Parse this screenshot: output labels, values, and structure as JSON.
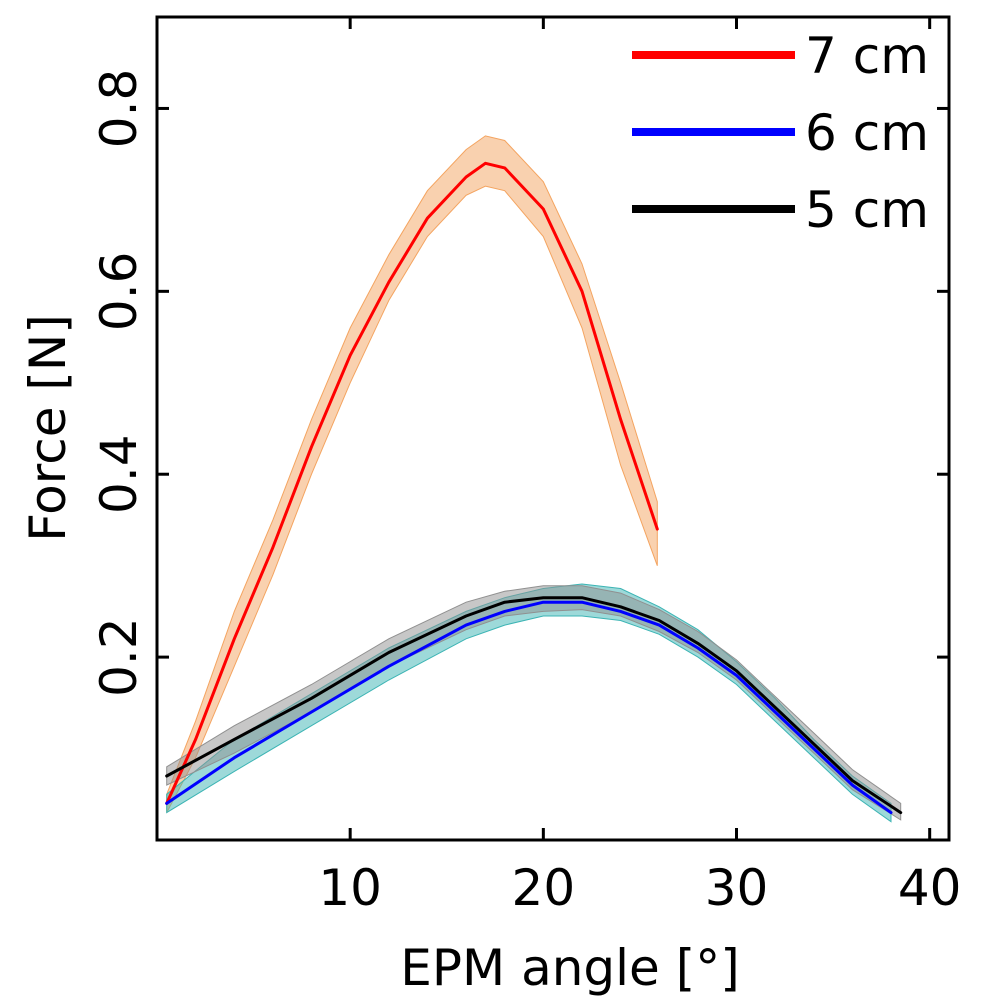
{
  "chart_data": {
    "type": "line",
    "xlabel": "EPM angle [°]",
    "ylabel": "Force [N]",
    "xlim": [
      0,
      41
    ],
    "ylim": [
      0,
      0.9
    ],
    "xticks": [
      10,
      20,
      30,
      40
    ],
    "xtick_labels": [
      "10",
      "20",
      "30",
      "40"
    ],
    "yticks": [
      0.2,
      0.4,
      0.6,
      0.8
    ],
    "ytick_labels": [
      "0.2",
      "0.4",
      "0.6",
      "0.8"
    ],
    "grid": false,
    "legend_position": "top-right",
    "series": [
      {
        "name": "7 cm",
        "color": "#ff0000",
        "band_color": "#f4a460",
        "x": [
          0.5,
          2,
          4,
          6,
          8,
          10,
          12,
          14,
          16,
          17,
          18,
          20,
          22,
          24,
          25.9
        ],
        "y": [
          0.04,
          0.11,
          0.22,
          0.32,
          0.43,
          0.53,
          0.61,
          0.68,
          0.725,
          0.74,
          0.735,
          0.69,
          0.6,
          0.46,
          0.34
        ],
        "y_lower": [
          0.03,
          0.09,
          0.19,
          0.29,
          0.4,
          0.5,
          0.59,
          0.66,
          0.705,
          0.715,
          0.71,
          0.66,
          0.56,
          0.41,
          0.3
        ],
        "y_upper": [
          0.05,
          0.13,
          0.25,
          0.35,
          0.46,
          0.56,
          0.64,
          0.71,
          0.755,
          0.77,
          0.765,
          0.72,
          0.63,
          0.5,
          0.37
        ]
      },
      {
        "name": "6 cm",
        "color": "#0000ff",
        "band_color": "#3cb4b4",
        "x": [
          0.5,
          4,
          8,
          12,
          16,
          18,
          20,
          22,
          24,
          26,
          28,
          30,
          32,
          34,
          36,
          38
        ],
        "y": [
          0.04,
          0.09,
          0.14,
          0.19,
          0.235,
          0.25,
          0.26,
          0.26,
          0.25,
          0.235,
          0.21,
          0.18,
          0.14,
          0.1,
          0.06,
          0.03
        ],
        "y_lower": [
          0.03,
          0.075,
          0.125,
          0.175,
          0.22,
          0.235,
          0.245,
          0.245,
          0.24,
          0.225,
          0.2,
          0.17,
          0.13,
          0.09,
          0.05,
          0.02
        ],
        "y_upper": [
          0.05,
          0.11,
          0.16,
          0.21,
          0.25,
          0.265,
          0.275,
          0.28,
          0.275,
          0.255,
          0.23,
          0.195,
          0.155,
          0.11,
          0.07,
          0.04
        ]
      },
      {
        "name": "5 cm",
        "color": "#000000",
        "band_color": "#909090",
        "x": [
          0.5,
          4,
          8,
          12,
          16,
          18,
          20,
          22,
          24,
          26,
          28,
          30,
          32,
          34,
          36,
          38.5
        ],
        "y": [
          0.07,
          0.11,
          0.155,
          0.205,
          0.245,
          0.26,
          0.265,
          0.265,
          0.255,
          0.24,
          0.215,
          0.185,
          0.145,
          0.105,
          0.065,
          0.03
        ],
        "y_lower": [
          0.06,
          0.095,
          0.14,
          0.19,
          0.23,
          0.245,
          0.25,
          0.252,
          0.245,
          0.228,
          0.205,
          0.175,
          0.135,
          0.095,
          0.055,
          0.022
        ],
        "y_upper": [
          0.08,
          0.125,
          0.17,
          0.22,
          0.26,
          0.272,
          0.278,
          0.278,
          0.27,
          0.252,
          0.228,
          0.197,
          0.157,
          0.117,
          0.077,
          0.04
        ]
      }
    ]
  }
}
